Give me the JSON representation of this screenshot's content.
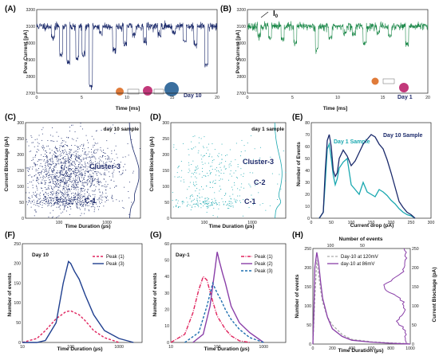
{
  "panels": {
    "A": {
      "letter": "(A)",
      "ylabel": "Pore Current [pA]",
      "xlabel": "Time [ms]",
      "tag": "Day 10",
      "yticks": [
        "3200",
        "3100",
        "3000",
        "2900",
        "2800",
        "2700"
      ],
      "xticks": [
        "0",
        "5",
        "10",
        "15",
        "20"
      ]
    },
    "B": {
      "letter": "(B)",
      "ylabel": "Pore Current [pA]",
      "xlabel": "Time [ms]",
      "tag": "Day 1",
      "i0": "I",
      "i0_sub": "0",
      "yticks": [
        "3200",
        "3100",
        "3000",
        "2900",
        "2800",
        "2700"
      ],
      "xticks": [
        "0",
        "5",
        "10",
        "15",
        "20"
      ]
    },
    "C": {
      "letter": "(C)",
      "ylabel": "Current Blockage (pA)",
      "xlabel": "Time Duration (µs)",
      "tag": "day 10 sample",
      "cluster_main": "Cluster-3",
      "cluster_low": "C-1",
      "yticks": [
        "300",
        "250",
        "200",
        "150",
        "100",
        "50",
        "0"
      ],
      "xticks": [
        "100",
        "1000"
      ]
    },
    "D": {
      "letter": "(D)",
      "ylabel": "Current Blockage (pA)",
      "xlabel": "Time Duration (µs)",
      "tag": "day 1 sample",
      "cluster_main": "Cluster-3",
      "cluster_mid": "C-2",
      "cluster_low": "C-1",
      "yticks": [
        "300",
        "250",
        "200",
        "150",
        "100",
        "50",
        "0"
      ],
      "xticks": [
        "100",
        "1000"
      ]
    },
    "E": {
      "letter": "(E)",
      "ylabel": "Number of Events",
      "xlabel": "Current drop (pA)",
      "yticks": [
        "0",
        "10",
        "20",
        "30",
        "40",
        "50",
        "60",
        "70",
        "80"
      ],
      "xticks": [
        "0",
        "50",
        "100",
        "150",
        "200",
        "250",
        "300"
      ]
    },
    "F": {
      "letter": "(F)",
      "ylabel": "Number of events",
      "xlabel": "Time Duration (µs)",
      "tag": "Day 10",
      "yticks": [
        "0",
        "50",
        "100",
        "150",
        "200",
        "250"
      ],
      "xticks": [
        "10",
        "100",
        "1000"
      ]
    },
    "G": {
      "letter": "(G)",
      "ylabel": "Number of events",
      "xlabel": "Time Duration (µs)",
      "tag": "Day-1",
      "yticks": [
        "0",
        "10",
        "20",
        "30",
        "40",
        "50",
        "60"
      ],
      "xticks": [
        "10",
        "100",
        "1000"
      ]
    },
    "H": {
      "letter": "(H)",
      "ylabel": "Number of events",
      "xlabel": "Time Duration (µs)",
      "ylabel2": "Current Blockage (pA)",
      "top_label": "Number of events",
      "yticks": [
        "0",
        "50",
        "100",
        "150",
        "200",
        "250"
      ],
      "y2ticks": [
        "0",
        "50",
        "100",
        "150",
        "200",
        "250"
      ],
      "xticks": [
        "0",
        "200",
        "400",
        "600",
        "800",
        "1000"
      ],
      "topticks": [
        "100",
        "50"
      ]
    }
  },
  "chart_data": [
    {
      "panel": "A",
      "type": "line",
      "title": "",
      "xlabel": "Time [ms]",
      "ylabel": "Pore Current [pA]",
      "xlim": [
        0,
        20
      ],
      "ylim": [
        2700,
        3200
      ],
      "baseline": 3100,
      "series": [
        {
          "name": "",
          "color": "#1b2a6b",
          "events": [
            [
              1.8,
              3030
            ],
            [
              2.7,
              2930
            ],
            [
              3.5,
              2880
            ],
            [
              4.5,
              2910
            ],
            [
              5.2,
              2930
            ],
            [
              6.0,
              2740
            ],
            [
              7.1,
              3060
            ],
            [
              8.6,
              2960
            ],
            [
              9.8,
              2990
            ],
            [
              10.8,
              3050
            ],
            [
              12.0,
              3010
            ],
            [
              13.6,
              3050
            ],
            [
              15.2,
              3060
            ],
            [
              16.4,
              3010
            ],
            [
              17.6,
              2990
            ],
            [
              18.8,
              2870
            ]
          ]
        }
      ]
    },
    {
      "panel": "B",
      "type": "line",
      "title": "",
      "xlabel": "Time [ms]",
      "ylabel": "Pore Current [pA]",
      "xlim": [
        0,
        20
      ],
      "ylim": [
        2700,
        3200
      ],
      "baseline": 3100,
      "series": [
        {
          "name": "",
          "color": "#1f8a4c",
          "events": [
            [
              1.3,
              3040
            ],
            [
              2.5,
              3030
            ],
            [
              3.9,
              3020
            ],
            [
              5.3,
              3000
            ],
            [
              7.7,
              2960
            ],
            [
              9.2,
              3030
            ],
            [
              10.8,
              3060
            ],
            [
              11.8,
              3050
            ],
            [
              13.0,
              3000
            ],
            [
              14.5,
              3060
            ],
            [
              15.8,
              3040
            ],
            [
              17.7,
              2990
            ]
          ]
        }
      ]
    },
    {
      "panel": "C",
      "type": "scatter",
      "title": "",
      "xlabel": "Time Duration (µs)",
      "ylabel": "Current Blockage (pA)",
      "xscale": "log",
      "xlim": [
        20,
        5000
      ],
      "ylim": [
        0,
        300
      ],
      "color": "#1b2a6b",
      "clusters": [
        {
          "cx": 150,
          "cy": 140,
          "sx": 0.5,
          "sy": 55,
          "n": 1500
        },
        {
          "cx": 120,
          "cy": 55,
          "sx": 0.45,
          "sy": 10,
          "n": 300
        }
      ]
    },
    {
      "panel": "D",
      "type": "scatter",
      "title": "",
      "xlabel": "Time Duration (µs)",
      "ylabel": "Current Blockage (pA)",
      "xscale": "log",
      "xlim": [
        20,
        5000
      ],
      "ylim": [
        0,
        300
      ],
      "color": "#1aa8b0",
      "clusters": [
        {
          "cx": 150,
          "cy": 140,
          "sx": 0.55,
          "sy": 60,
          "n": 280
        },
        {
          "cx": 120,
          "cy": 50,
          "sx": 0.5,
          "sy": 10,
          "n": 140
        }
      ]
    },
    {
      "panel": "E",
      "type": "line",
      "title": "",
      "xlabel": "Current drop (pA)",
      "ylabel": "Number of Events",
      "xlim": [
        0,
        300
      ],
      "ylim": [
        0,
        80
      ],
      "series": [
        {
          "name": "Day 1 Sample",
          "color": "#1aa8b0",
          "x": [
            20,
            30,
            35,
            40,
            45,
            50,
            55,
            60,
            65,
            70,
            80,
            90,
            100,
            110,
            120,
            130,
            140,
            150,
            160,
            170,
            180,
            190,
            200,
            210,
            220,
            230,
            240,
            250,
            260
          ],
          "y": [
            0,
            5,
            30,
            58,
            62,
            50,
            36,
            28,
            33,
            42,
            47,
            50,
            28,
            24,
            20,
            30,
            22,
            20,
            18,
            24,
            22,
            19,
            15,
            12,
            8,
            5,
            3,
            2,
            0
          ]
        },
        {
          "name": "Day 10 Sample",
          "color": "#1b2a6b",
          "x": [
            20,
            30,
            35,
            40,
            45,
            50,
            55,
            60,
            65,
            70,
            80,
            90,
            100,
            110,
            120,
            130,
            140,
            150,
            160,
            170,
            180,
            190,
            200,
            210,
            220,
            230,
            240,
            250,
            260
          ],
          "y": [
            0,
            5,
            40,
            65,
            70,
            60,
            40,
            35,
            38,
            50,
            57,
            52,
            44,
            48,
            55,
            62,
            66,
            70,
            68,
            62,
            58,
            49,
            38,
            26,
            14,
            9,
            5,
            3,
            0
          ]
        }
      ],
      "annotations": [
        "Day 1 Sample",
        "Day 10 Sample"
      ]
    },
    {
      "panel": "F",
      "type": "line",
      "title": "",
      "xlabel": "Time Duration (µs)",
      "ylabel": "Number of events",
      "xscale": "log",
      "xlim": [
        10,
        3000
      ],
      "ylim": [
        0,
        250
      ],
      "series": [
        {
          "name": "Peak (1)",
          "color": "#e0245e",
          "dash": true,
          "x": [
            10,
            20,
            30,
            50,
            80,
            100,
            150,
            200,
            300,
            500,
            1000
          ],
          "y": [
            0,
            10,
            30,
            60,
            78,
            80,
            70,
            55,
            30,
            12,
            0
          ]
        },
        {
          "name": "Peak (3)",
          "color": "#1f3f8f",
          "dash": false,
          "x": [
            10,
            20,
            30,
            50,
            70,
            90,
            100,
            120,
            150,
            200,
            300,
            500,
            1000,
            2000
          ],
          "y": [
            0,
            0,
            5,
            50,
            150,
            205,
            200,
            180,
            160,
            120,
            70,
            30,
            10,
            0
          ]
        }
      ]
    },
    {
      "panel": "G",
      "type": "line",
      "title": "",
      "xlabel": "Time Duration (µs)",
      "ylabel": "Number of events",
      "xscale": "log",
      "xlim": [
        10,
        3000
      ],
      "ylim": [
        0,
        60
      ],
      "series": [
        {
          "name": "Peak (1)",
          "color": "#e0245e",
          "dash": "dashdot",
          "x": [
            10,
            20,
            30,
            40,
            50,
            60,
            80,
            100,
            150,
            200,
            300,
            500
          ],
          "y": [
            0,
            5,
            18,
            32,
            40,
            38,
            25,
            16,
            8,
            4,
            1,
            0
          ]
        },
        {
          "name": "Peak (2)",
          "color": "#8a3fa8",
          "dash": false,
          "x": [
            30,
            50,
            70,
            90,
            100,
            110,
            130,
            150,
            200,
            300,
            500,
            1000
          ],
          "y": [
            0,
            5,
            22,
            45,
            55,
            50,
            42,
            36,
            22,
            12,
            6,
            0
          ]
        },
        {
          "name": "Peak (3)",
          "color": "#1f6fb0",
          "dash": "dash",
          "x": [
            20,
            40,
            60,
            80,
            100,
            120,
            150,
            200,
            300,
            500,
            1000
          ],
          "y": [
            0,
            6,
            22,
            36,
            30,
            26,
            20,
            14,
            8,
            3,
            0
          ]
        }
      ]
    },
    {
      "panel": "H",
      "type": "line",
      "title": "",
      "xlabel": "Time Duration (µs)",
      "ylabel": "Number of events",
      "xlim": [
        0,
        1000
      ],
      "ylim": [
        0,
        250
      ],
      "series": [
        {
          "name": "Day-10 at 120mV",
          "color": "#aaaaaa",
          "dash": true,
          "x": [
            0,
            20,
            40,
            60,
            80,
            100,
            150,
            200,
            300,
            400,
            600,
            800,
            1000
          ],
          "y": [
            0,
            120,
            220,
            180,
            140,
            110,
            70,
            50,
            25,
            12,
            6,
            3,
            1
          ]
        },
        {
          "name": "day-10 at 86mV",
          "color": "#8a3fa8",
          "dash": false,
          "x": [
            0,
            10,
            20,
            40,
            60,
            80,
            100,
            150,
            200,
            300,
            400,
            600,
            800,
            1000
          ],
          "y": [
            0,
            80,
            200,
            240,
            210,
            160,
            120,
            70,
            40,
            20,
            10,
            5,
            2,
            0
          ]
        }
      ]
    }
  ]
}
